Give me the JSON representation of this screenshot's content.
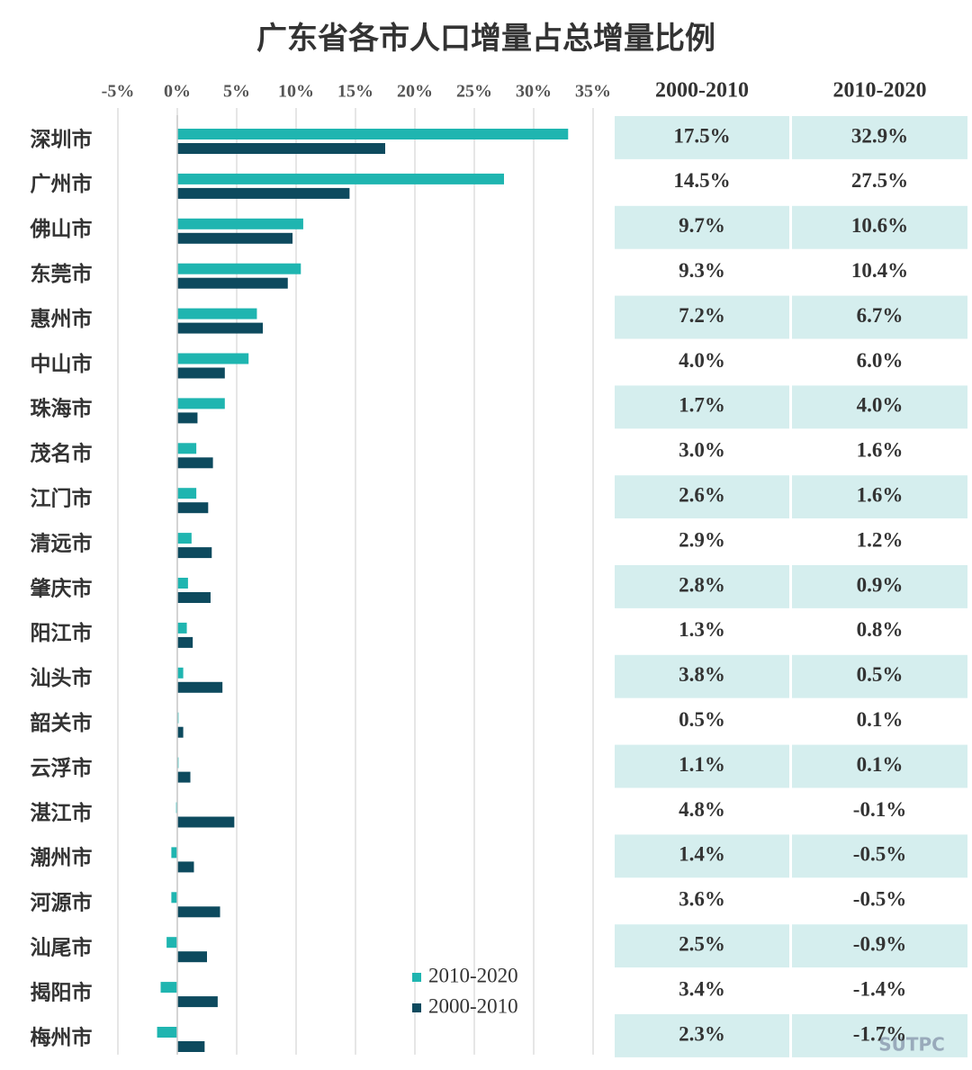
{
  "chart_data": {
    "type": "bar",
    "orientation": "horizontal",
    "title": "广东省各市人口增量占总增量比例",
    "categories": [
      "深圳市",
      "广州市",
      "佛山市",
      "东莞市",
      "惠州市",
      "中山市",
      "珠海市",
      "茂名市",
      "江门市",
      "清远市",
      "肇庆市",
      "阳江市",
      "汕头市",
      "韶关市",
      "云浮市",
      "湛江市",
      "潮州市",
      "河源市",
      "汕尾市",
      "揭阳市",
      "梅州市"
    ],
    "series": [
      {
        "name": "2010-2020",
        "color": "#1fb5b0",
        "values": [
          32.9,
          27.5,
          10.6,
          10.4,
          6.7,
          6.0,
          4.0,
          1.6,
          1.6,
          1.2,
          0.9,
          0.8,
          0.5,
          0.1,
          0.1,
          -0.1,
          -0.5,
          -0.5,
          -0.9,
          -1.4,
          -1.7
        ],
        "value_labels": [
          "32.9%",
          "27.5%",
          "10.6%",
          "10.4%",
          "6.7%",
          "6.0%",
          "4.0%",
          "1.6%",
          "1.6%",
          "1.2%",
          "0.9%",
          "0.8%",
          "0.5%",
          "0.1%",
          "0.1%",
          "-0.1%",
          "-0.5%",
          "-0.5%",
          "-0.9%",
          "-1.4%",
          "-1.7%"
        ]
      },
      {
        "name": "2000-2010",
        "color": "#0d4a5e",
        "values": [
          17.5,
          14.5,
          9.7,
          9.3,
          7.2,
          4.0,
          1.7,
          3.0,
          2.6,
          2.9,
          2.8,
          1.3,
          3.8,
          0.5,
          1.1,
          4.8,
          1.4,
          3.6,
          2.5,
          3.4,
          2.3
        ],
        "value_labels": [
          "17.5%",
          "14.5%",
          "9.7%",
          "9.3%",
          "7.2%",
          "4.0%",
          "1.7%",
          "3.0%",
          "2.6%",
          "2.9%",
          "2.8%",
          "1.3%",
          "3.8%",
          "0.5%",
          "1.1%",
          "4.8%",
          "1.4%",
          "3.6%",
          "2.5%",
          "3.4%",
          "2.3%"
        ]
      }
    ],
    "xlim": [
      -5,
      35
    ],
    "xticks": [
      {
        "value": -5,
        "label": "-5%"
      },
      {
        "value": 0,
        "label": "0%"
      },
      {
        "value": 5,
        "label": "5%"
      },
      {
        "value": 10,
        "label": "10%"
      },
      {
        "value": 15,
        "label": "15%"
      },
      {
        "value": 20,
        "label": "20%"
      },
      {
        "value": 25,
        "label": "25%"
      },
      {
        "value": 30,
        "label": "30%"
      },
      {
        "value": 35,
        "label": "35%"
      }
    ],
    "grid": true,
    "watermark": "SUTPC"
  }
}
